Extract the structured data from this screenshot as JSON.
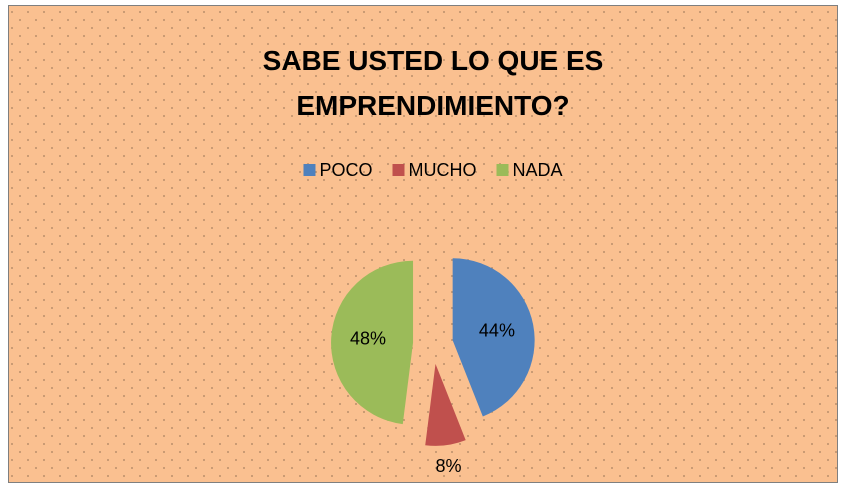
{
  "chart_data": {
    "type": "pie",
    "title": "SABE USTED LO QUE ES EMPRENDIMIENTO?",
    "categories": [
      "POCO",
      "MUCHO",
      "NADA"
    ],
    "values": [
      44,
      8,
      48
    ],
    "value_labels": [
      "44%",
      "8%",
      "48%"
    ],
    "colors": [
      "#4F81BD",
      "#C0504D",
      "#9BBB59"
    ],
    "legend": "top"
  }
}
